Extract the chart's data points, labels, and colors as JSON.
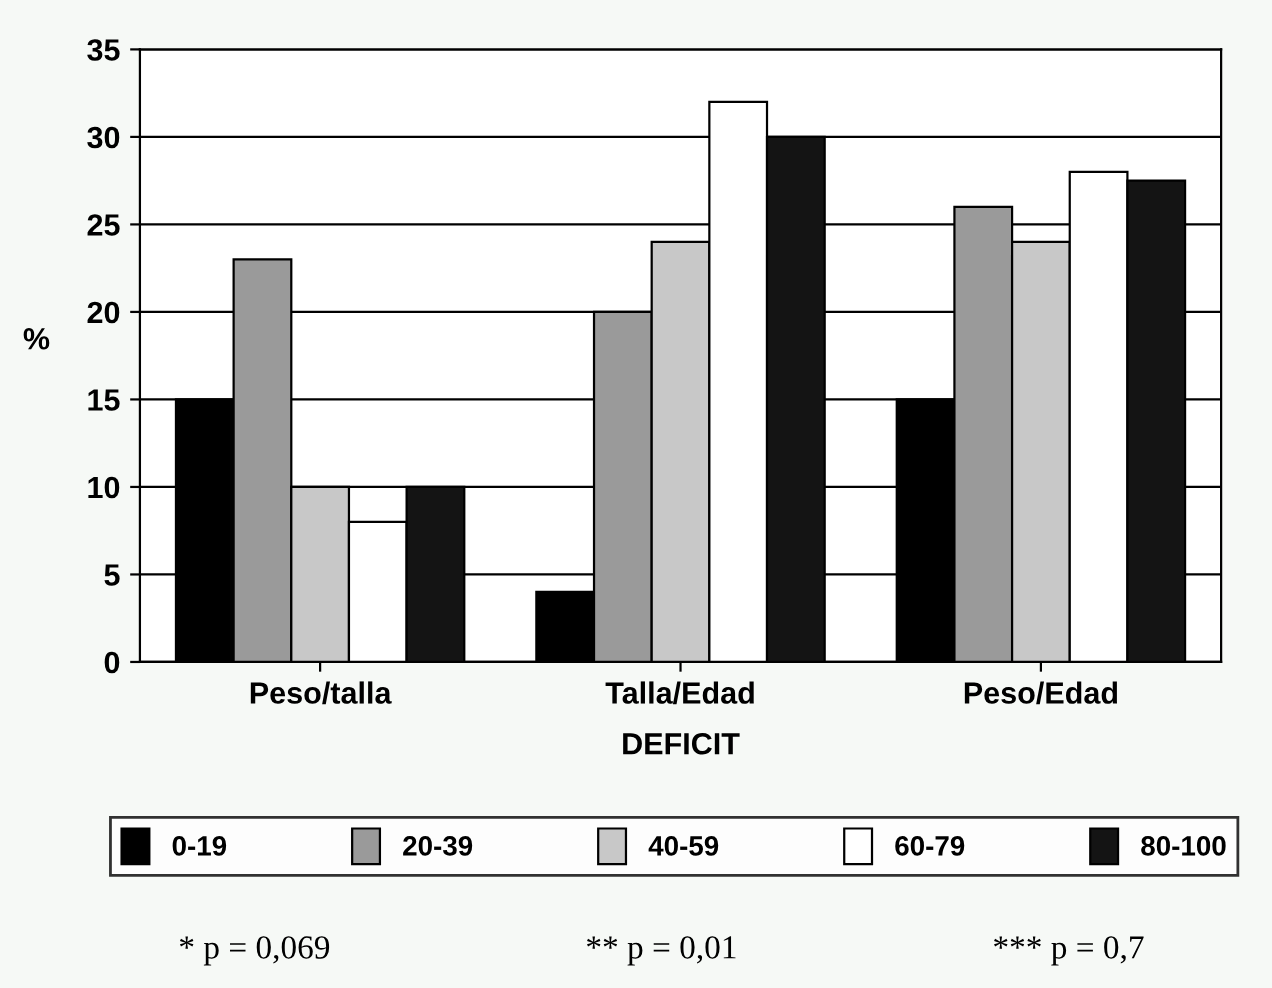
{
  "chart_data": {
    "type": "bar",
    "ylabel": "%",
    "xlabel": "DEFICIT",
    "categories": [
      "Peso/talla",
      "Talla/Edad",
      "Peso/Edad"
    ],
    "series": [
      {
        "name": "0-19",
        "color": "#000000",
        "values": [
          15,
          4,
          15
        ]
      },
      {
        "name": "20-39",
        "color": "#9a9a9a",
        "values": [
          23,
          20,
          26
        ]
      },
      {
        "name": "40-59",
        "color": "#c8c8c8",
        "values": [
          10,
          24,
          24
        ]
      },
      {
        "name": "60-79",
        "color": "#ffffff",
        "values": [
          8,
          32,
          28
        ]
      },
      {
        "name": "80-100",
        "color": "#141414",
        "values": [
          10,
          30,
          27.5
        ]
      }
    ],
    "ylim": [
      0,
      35
    ],
    "yticks": [
      0,
      5,
      10,
      15,
      20,
      25,
      30,
      35
    ],
    "grid": "y",
    "legend": "bottom",
    "annotations": [
      "* p = 0,069",
      "** p = 0,01",
      "*** p = 0,7"
    ]
  }
}
